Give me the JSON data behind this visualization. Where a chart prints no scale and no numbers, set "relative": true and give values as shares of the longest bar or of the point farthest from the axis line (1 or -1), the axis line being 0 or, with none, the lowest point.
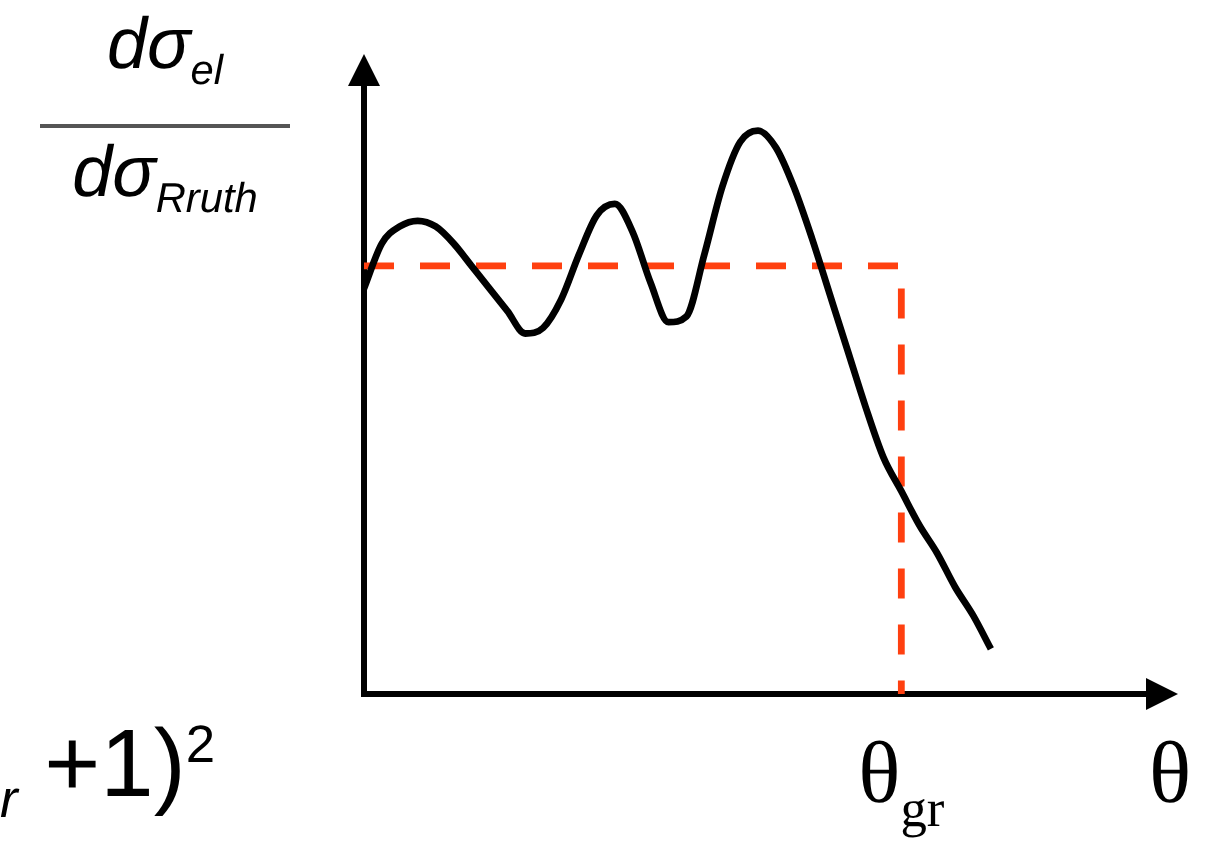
{
  "chart_data": {
    "type": "line",
    "ylabel": "dσ$_{el}$\ndσ$_{Rruth}$",
    "annotations": [
      "$_{r}$ +1)$^{2}$"
    ],
    "categories": [
      null,
      null,
      null,
      null,
      null,
      null,
      null,
      null,
      null,
      null,
      null,
      null,
      null,
      null,
      null,
      null,
      null,
      null,
      null,
      null,
      null,
      null,
      null,
      null,
      null,
      null,
      null,
      null,
      null,
      null,
      "θ$_{gr}$",
      null,
      null,
      null,
      null,
      null,
      null,
      null,
      null,
      null,
      null,
      null,
      null,
      null,
      null,
      "θ"
    ],
    "relative": true,
    "legend": false,
    "grid": false,
    "marker": "none",
    "tick_labels": "x",
    "series": [
      {
        "color": "#000000",
        "line_style": "solid",
        "values": [
          0.72,
          0.8,
          0.83,
          0.84,
          0.83,
          0.8,
          0.76,
          0.72,
          0.68,
          0.64,
          0.65,
          0.7,
          0.78,
          0.85,
          0.87,
          0.82,
          0.73,
          0.66,
          0.67,
          0.78,
          0.9,
          0.98,
          1.0,
          0.97,
          0.9,
          0.81,
          0.71,
          0.61,
          0.51,
          0.42,
          0.36,
          0.3,
          0.25,
          0.19,
          0.14,
          0.08,
          null,
          null,
          null,
          null,
          null,
          null,
          null,
          null,
          null,
          null
        ]
      },
      {
        "type": "step",
        "color": "#ff4010",
        "line_style": "dashed",
        "values": [
          0.76,
          0.76,
          0.76,
          0.76,
          0.76,
          0.76,
          0.76,
          0.76,
          0.76,
          0.76,
          0.76,
          0.76,
          0.76,
          0.76,
          0.76,
          0.76,
          0.76,
          0.76,
          0.76,
          0.76,
          0.76,
          0.76,
          0.76,
          0.76,
          0.76,
          0.76,
          0.76,
          0.76,
          0.76,
          0.76,
          0,
          null,
          null,
          null,
          null,
          null,
          null,
          null,
          null,
          null,
          null,
          null,
          null,
          null,
          null,
          null
        ]
      }
    ]
  }
}
